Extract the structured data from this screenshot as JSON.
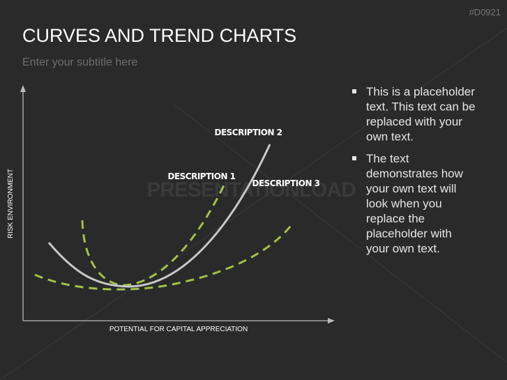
{
  "slide": {
    "code": "#D0921",
    "title": "CURVES AND TREND CHARTS",
    "subtitle": "Enter your subtitle here",
    "watermark": "PRESENTATIONLOAD",
    "diagram": {
      "y_axis_label": "RISK ENVIRONMENT",
      "x_axis_label": "POTENTIAL FOR CAPITAL APPRECIATION",
      "labels": [
        "DESCRIPTION 2",
        "DESCRIPTION 1",
        "DESCRIPTION 3"
      ]
    },
    "bullets": [
      [
        "This is a placeholder",
        "text. This text can be",
        "replaced with your",
        "own text."
      ],
      [
        "The text",
        "demonstrates how",
        "your own text will",
        "look when you",
        "replace the",
        "placeholder with",
        "your own text."
      ]
    ]
  }
}
